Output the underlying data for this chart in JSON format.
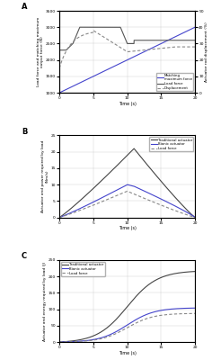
{
  "panel_A": {
    "title": "A",
    "xlabel": "Time (s)",
    "ylabel_left": "Load force and matching maximum\noutput force (N)",
    "ylabel_right": "Actuator rod displacement (%)",
    "xlim": [
      0,
      20
    ],
    "ylim_left": [
      1000,
      3500
    ],
    "ylim_right": [
      0,
      50
    ],
    "yticks_left": [
      1000,
      1500,
      2000,
      2500,
      3000,
      3500
    ],
    "yticks_right": [
      0,
      10,
      20,
      30,
      40,
      50
    ],
    "legend": [
      "Matching\nmaximum force",
      "Load force",
      "Displacement"
    ],
    "line_colors": [
      "#4444cc",
      "#555555",
      "#888888"
    ],
    "line_styles": [
      "-",
      "-",
      "--"
    ]
  },
  "panel_B": {
    "title": "B",
    "xlabel": "Time (s)",
    "ylabel": "Actuator and power required by load\n(Nm/s)",
    "xlim": [
      0,
      20
    ],
    "ylim": [
      0,
      25
    ],
    "yticks": [
      0,
      5,
      10,
      15,
      20,
      25
    ],
    "legend": [
      "Traditional actuator",
      "Bionic actuator",
      "Load force"
    ],
    "line_colors": [
      "#444444",
      "#4444cc",
      "#888888"
    ],
    "line_styles": [
      "-",
      "-",
      "--"
    ]
  },
  "panel_C": {
    "title": "C",
    "xlabel": "Time (s)",
    "ylabel": "Actuator and energy required by load (J)",
    "xlim": [
      0,
      20
    ],
    "ylim": [
      0,
      250
    ],
    "yticks": [
      0,
      50,
      100,
      150,
      200,
      250
    ],
    "legend": [
      "Traditional actuator",
      "Bionic actuator",
      "Load force"
    ],
    "line_colors": [
      "#444444",
      "#4444cc",
      "#888888"
    ],
    "line_styles": [
      "-",
      "-",
      "--"
    ]
  },
  "bg_color": "#ffffff",
  "grid_color": "#cccccc"
}
